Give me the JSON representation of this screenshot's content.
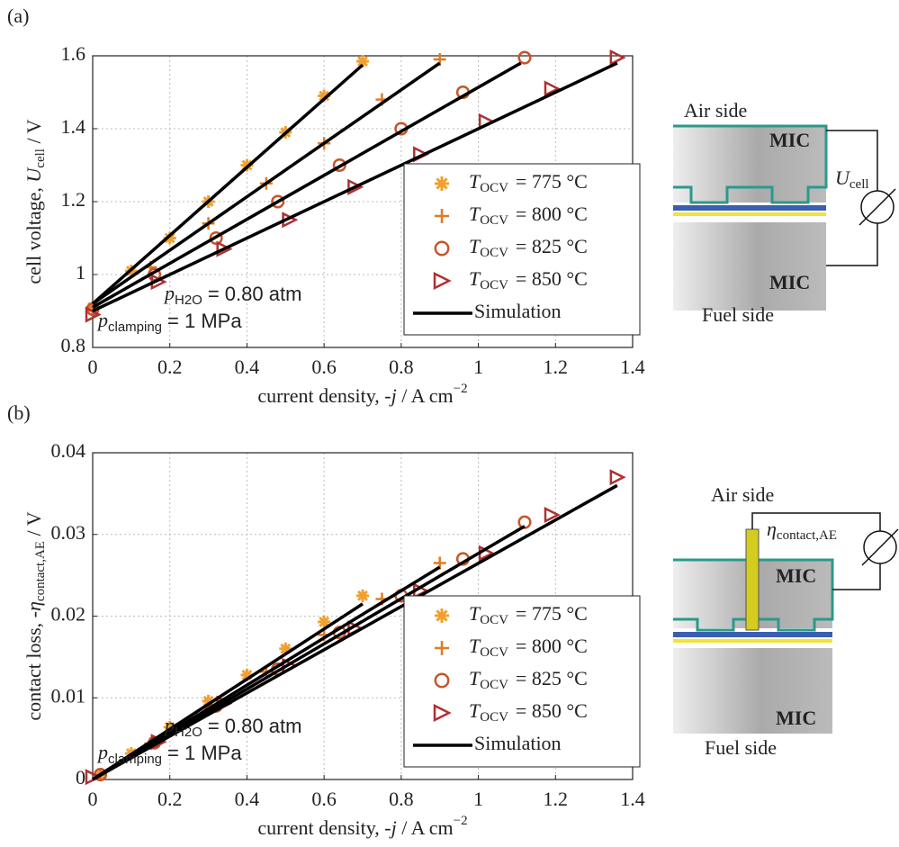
{
  "chart_data": [
    {
      "type": "scatter",
      "panel_label": "(a)",
      "xlabel": {
        "text": "current density, -",
        "var": "j",
        "unit": " / A cm",
        "sup": "−2"
      },
      "ylabel": {
        "text": "cell voltage, ",
        "var": "U",
        "sub": "cell",
        "unit": " / V"
      },
      "xlim": [
        0,
        1.4
      ],
      "xticks": [
        0,
        0.2,
        0.4,
        0.6,
        0.8,
        1,
        1.2,
        1.4
      ],
      "ylim": [
        0.8,
        1.6
      ],
      "yticks": [
        0.8,
        1,
        1.2,
        1.4,
        1.6
      ],
      "grid": true,
      "legend": "lower right",
      "series": [
        {
          "name": "T",
          "name_sub": "OCV",
          "name_value": "= 775 °C",
          "color": "#f0a030",
          "marker": "asterisk",
          "x": [
            0,
            0.1,
            0.2,
            0.3,
            0.4,
            0.5,
            0.6,
            0.7
          ],
          "values": [
            0.91,
            1.01,
            1.1,
            1.2,
            1.3,
            1.39,
            1.49,
            1.585
          ]
        },
        {
          "name": "T",
          "name_sub": "OCV",
          "name_value": "= 800 °C",
          "color": "#e07b20",
          "marker": "plus",
          "x": [
            0,
            0.15,
            0.3,
            0.45,
            0.6,
            0.75,
            0.9
          ],
          "values": [
            0.91,
            1.02,
            1.14,
            1.25,
            1.36,
            1.48,
            1.59
          ]
        },
        {
          "name": "T",
          "name_sub": "OCV",
          "name_value": "= 825 °C",
          "color": "#c8552a",
          "marker": "circle",
          "x": [
            0,
            0.16,
            0.32,
            0.48,
            0.64,
            0.8,
            0.96,
            1.12
          ],
          "values": [
            0.905,
            1.0,
            1.1,
            1.2,
            1.3,
            1.4,
            1.5,
            1.595
          ]
        },
        {
          "name": "T",
          "name_sub": "OCV",
          "name_value": "= 850 °C",
          "color": "#b03030",
          "marker": "triangle",
          "x": [
            0,
            0.17,
            0.34,
            0.51,
            0.68,
            0.85,
            1.02,
            1.19,
            1.36
          ],
          "values": [
            0.89,
            0.98,
            1.07,
            1.15,
            1.24,
            1.33,
            1.42,
            1.51,
            1.595
          ]
        }
      ],
      "simulation": {
        "name": "Simulation",
        "color": "#000000",
        "lines": [
          {
            "x": [
              0,
              0.7
            ],
            "values": [
              0.92,
              1.575
            ]
          },
          {
            "x": [
              0,
              0.9
            ],
            "values": [
              0.92,
              1.58
            ]
          },
          {
            "x": [
              0,
              1.11
            ],
            "values": [
              0.91,
              1.58
            ]
          },
          {
            "x": [
              0,
              1.36
            ],
            "values": [
              0.9,
              1.58
            ]
          }
        ]
      },
      "annotations": [
        {
          "var": "p",
          "sub": "H2O",
          "text": "= 0.80 atm"
        },
        {
          "var": "p",
          "sub": "clamping",
          "text": "= 1 MPa"
        }
      ]
    },
    {
      "type": "scatter",
      "panel_label": "(b)",
      "xlabel": {
        "text": "current density, -",
        "var": "j",
        "unit": " / A cm",
        "sup": "−2"
      },
      "ylabel": {
        "text": "contact loss, -",
        "var": "η",
        "sub": "contact,AE",
        "unit": " / V"
      },
      "xlim": [
        0,
        1.4
      ],
      "xticks": [
        0,
        0.2,
        0.4,
        0.6,
        0.8,
        1,
        1.2,
        1.4
      ],
      "ylim": [
        0,
        0.04
      ],
      "yticks": [
        0,
        0.01,
        0.02,
        0.03,
        0.04
      ],
      "grid": true,
      "legend": "lower right",
      "series": [
        {
          "name": "T",
          "name_sub": "OCV",
          "name_value": "= 775 °C",
          "color": "#f0a030",
          "marker": "asterisk",
          "x": [
            0.02,
            0.1,
            0.2,
            0.3,
            0.4,
            0.5,
            0.6,
            0.7
          ],
          "values": [
            0.0006,
            0.0032,
            0.0064,
            0.0096,
            0.0128,
            0.016,
            0.0193,
            0.0225
          ]
        },
        {
          "name": "T",
          "name_sub": "OCV",
          "name_value": "= 800 °C",
          "color": "#e07b20",
          "marker": "plus",
          "x": [
            0.02,
            0.15,
            0.3,
            0.45,
            0.6,
            0.75,
            0.9
          ],
          "values": [
            0.0006,
            0.0044,
            0.0088,
            0.0132,
            0.0177,
            0.0221,
            0.0265
          ]
        },
        {
          "name": "T",
          "name_sub": "OCV",
          "name_value": "= 825 °C",
          "color": "#c8552a",
          "marker": "circle",
          "x": [
            0.02,
            0.16,
            0.32,
            0.48,
            0.64,
            0.8,
            0.96,
            1.12
          ],
          "values": [
            0.0006,
            0.0045,
            0.009,
            0.0135,
            0.018,
            0.0225,
            0.027,
            0.0315
          ]
        },
        {
          "name": "T",
          "name_sub": "OCV",
          "name_value": "= 850 °C",
          "color": "#b03030",
          "marker": "triangle",
          "x": [
            0,
            0.17,
            0.34,
            0.51,
            0.68,
            0.85,
            1.02,
            1.19,
            1.36
          ],
          "values": [
            0.0003,
            0.0046,
            0.0093,
            0.0139,
            0.0185,
            0.0231,
            0.0277,
            0.0324,
            0.037
          ]
        }
      ],
      "simulation": {
        "name": "Simulation",
        "color": "#000000",
        "lines": [
          {
            "x": [
              0,
              0.7
            ],
            "values": [
              0,
              0.0215
            ]
          },
          {
            "x": [
              0,
              0.9
            ],
            "values": [
              0,
              0.026
            ]
          },
          {
            "x": [
              0,
              1.12
            ],
            "values": [
              0,
              0.031
            ]
          },
          {
            "x": [
              0,
              1.36
            ],
            "values": [
              0,
              0.036
            ]
          }
        ]
      },
      "annotations": [
        {
          "var": "p",
          "sub": "H2O",
          "text": "= 0.80 atm"
        },
        {
          "var": "p",
          "sub": "clamping",
          "text": "= 1 MPa"
        }
      ]
    }
  ],
  "diagrams": [
    {
      "air": "Air side",
      "fuel": "Fuel side",
      "top": "MIC",
      "bottom": "MIC",
      "meter_var": "U",
      "meter_sub": "cell"
    },
    {
      "air": "Air side",
      "fuel": "Fuel side",
      "top": "MIC",
      "bottom": "MIC",
      "meter_var": "η",
      "meter_sub": "contact,AE"
    }
  ]
}
